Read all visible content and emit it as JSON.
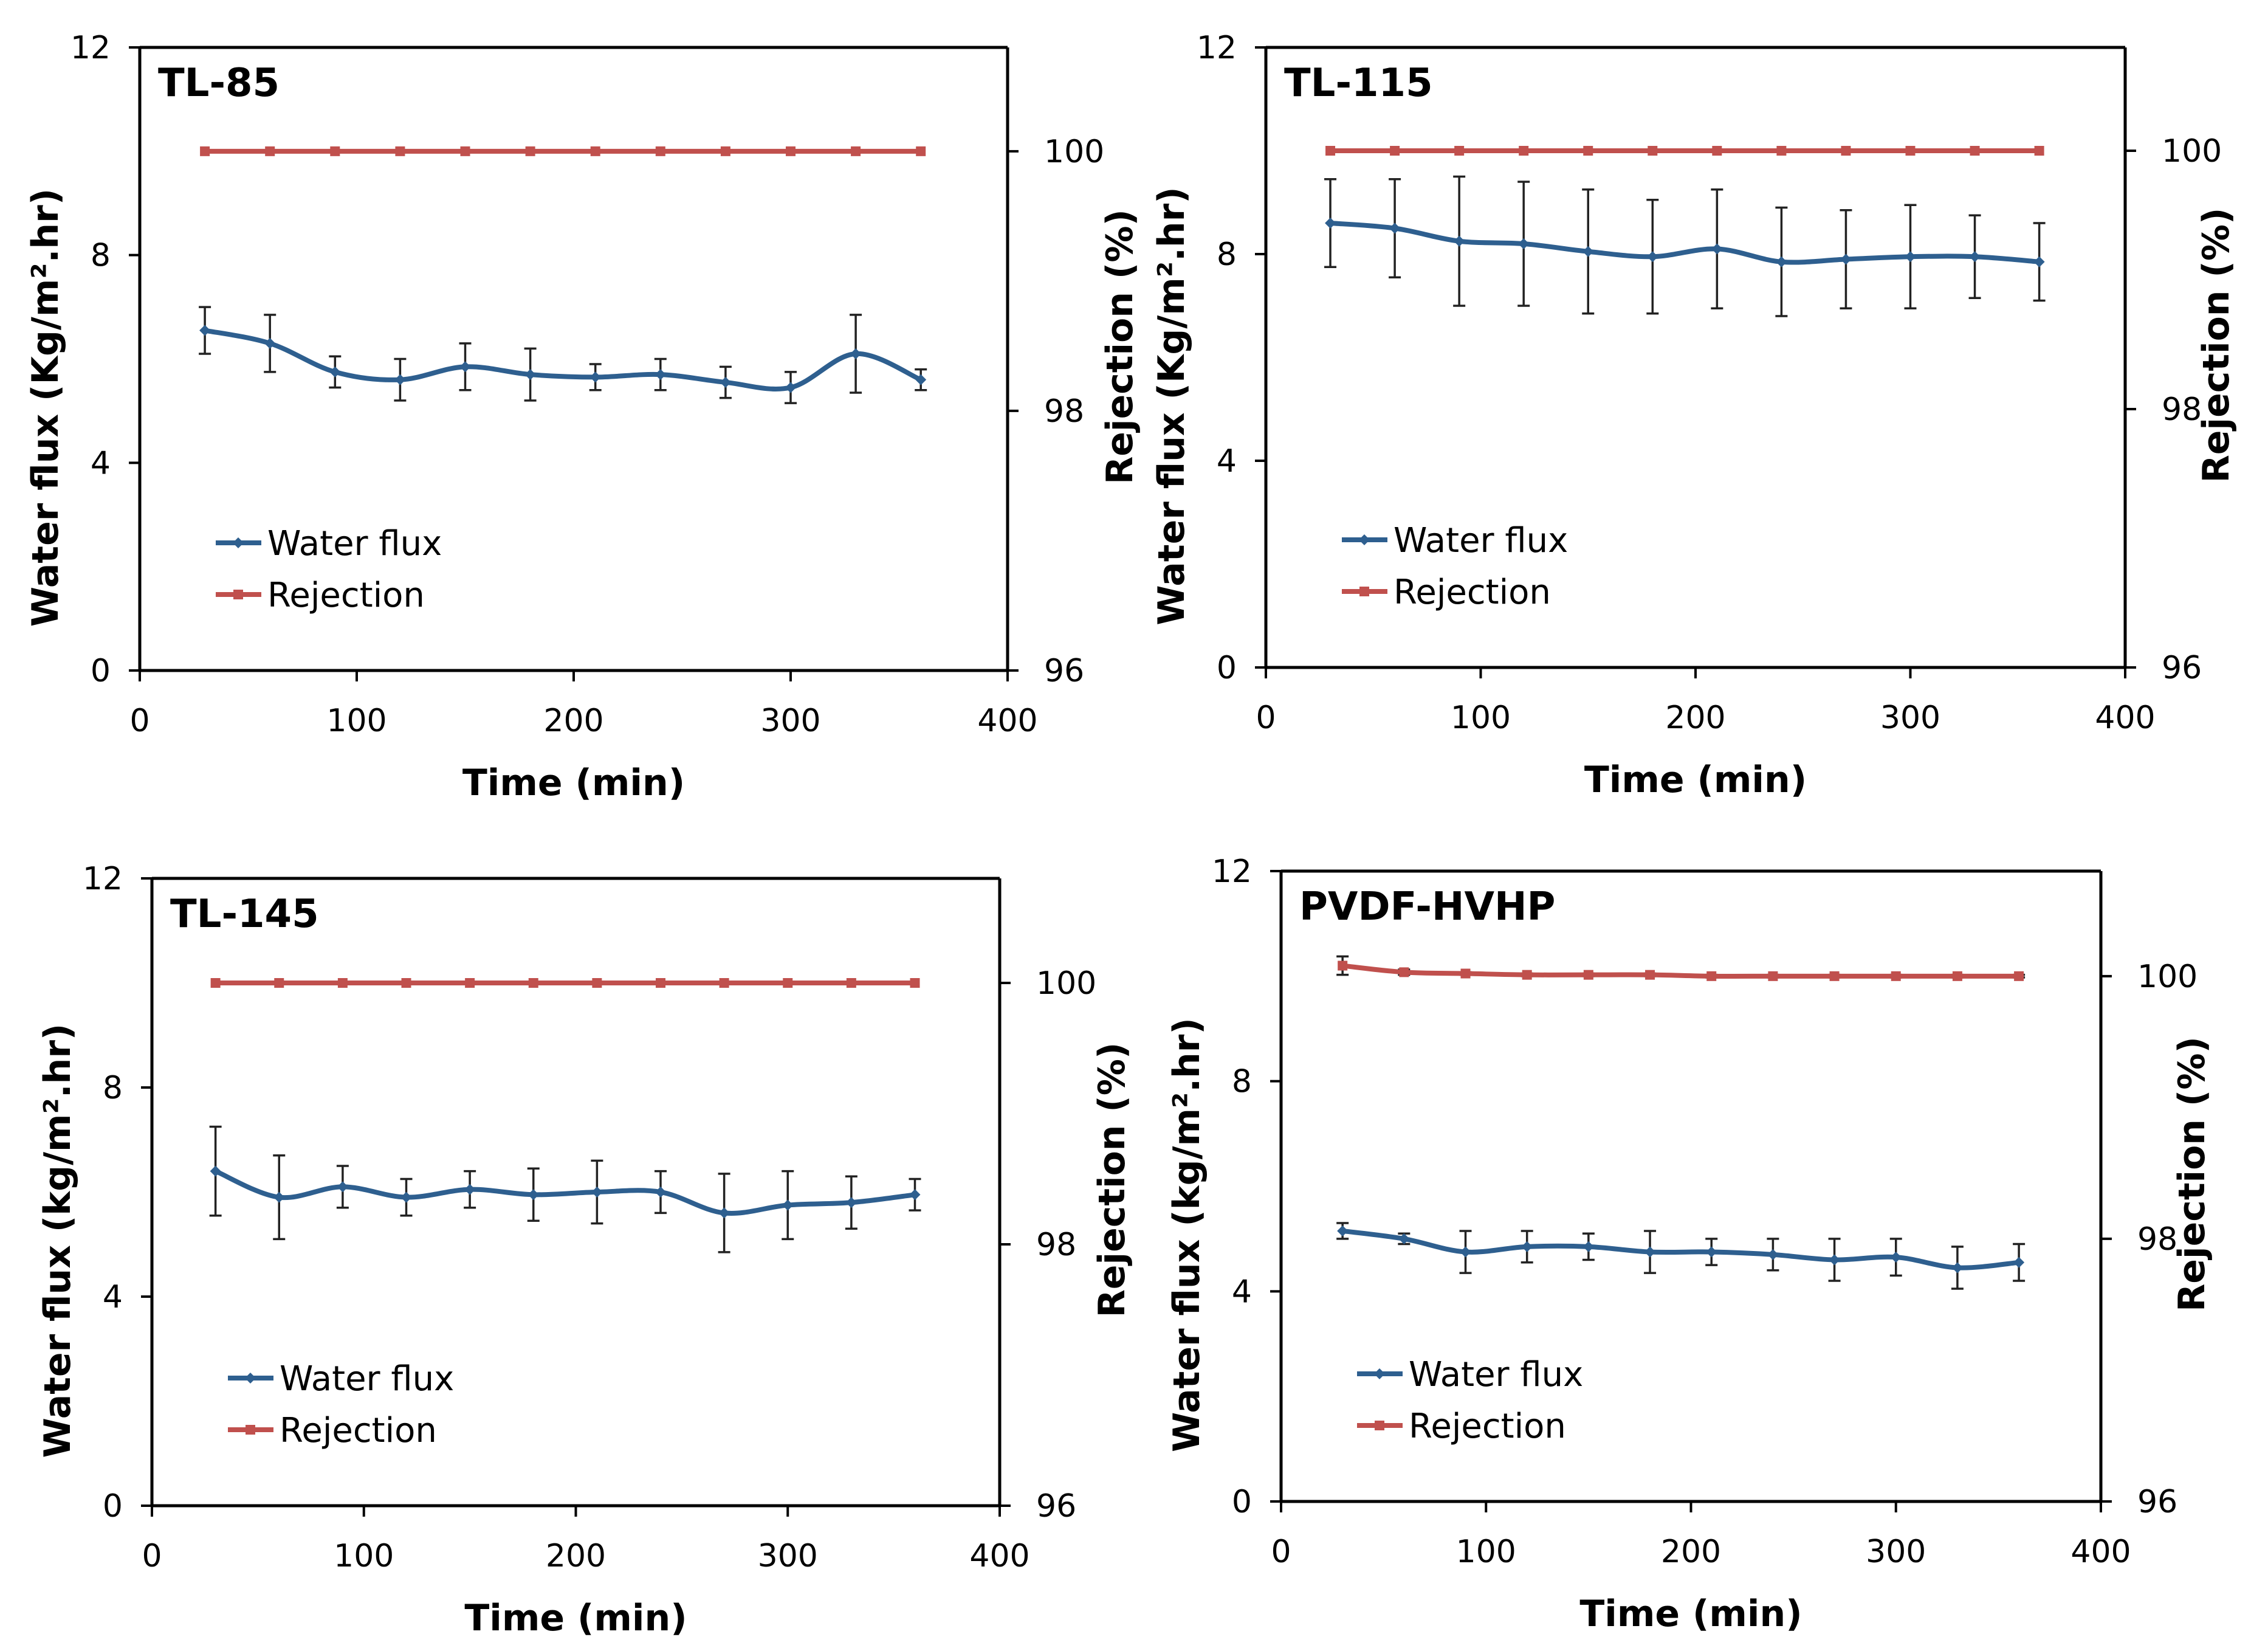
{
  "figure": {
    "colors": {
      "flux": "#2e5f8f",
      "rejection": "#c0504d",
      "axis": "#000000"
    }
  },
  "chart_data": [
    {
      "type": "line",
      "title": "TL-85",
      "xlabel": "Time (min)",
      "ylabel": "Water flux (Kg/m².hr)",
      "y2label": "Rejection (%)",
      "xlim": [
        0,
        400
      ],
      "ylim": [
        0,
        12
      ],
      "y2lim": [
        96,
        100.8
      ],
      "xticks": [
        "0",
        "100",
        "200",
        "300",
        "400"
      ],
      "yticks": [
        "0",
        "4",
        "8",
        "12"
      ],
      "y2ticks": [
        "96",
        "98",
        "100"
      ],
      "legend": [
        "Water flux",
        "Rejection"
      ],
      "legend_position": "lower-left",
      "x": [
        30,
        60,
        90,
        120,
        150,
        180,
        210,
        240,
        270,
        300,
        330,
        360
      ],
      "series": [
        {
          "name": "Water flux",
          "axis": "left",
          "values": [
            6.55,
            6.3,
            5.75,
            5.6,
            5.85,
            5.7,
            5.65,
            5.7,
            5.55,
            5.45,
            6.1,
            5.6
          ],
          "errors": [
            0.45,
            0.55,
            0.3,
            0.4,
            0.45,
            0.5,
            0.25,
            0.3,
            0.3,
            0.3,
            0.75,
            0.2
          ]
        },
        {
          "name": "Rejection",
          "axis": "right",
          "values": [
            100,
            100,
            100,
            100,
            100,
            100,
            100,
            100,
            100,
            100,
            100,
            100
          ]
        }
      ]
    },
    {
      "type": "line",
      "title": "TL-115",
      "xlabel": "Time (min)",
      "ylabel": "Water flux (Kg/m².hr)",
      "y2label": "Rejection (%)",
      "xlim": [
        0,
        400
      ],
      "ylim": [
        0,
        12
      ],
      "y2lim": [
        96,
        100.8
      ],
      "xticks": [
        "0",
        "100",
        "200",
        "300",
        "400"
      ],
      "yticks": [
        "0",
        "4",
        "8",
        "12"
      ],
      "y2ticks": [
        "96",
        "98",
        "100"
      ],
      "legend": [
        "Water flux",
        "Rejection"
      ],
      "legend_position": "lower-left",
      "x": [
        30,
        60,
        90,
        120,
        150,
        180,
        210,
        240,
        270,
        300,
        330,
        360
      ],
      "series": [
        {
          "name": "Water flux",
          "axis": "left",
          "values": [
            8.6,
            8.5,
            8.25,
            8.2,
            8.05,
            7.95,
            8.1,
            7.85,
            7.9,
            7.95,
            7.95,
            7.85
          ],
          "errors": [
            0.85,
            0.95,
            1.25,
            1.2,
            1.2,
            1.1,
            1.15,
            1.05,
            0.95,
            1.0,
            0.8,
            0.75
          ]
        },
        {
          "name": "Rejection",
          "axis": "right",
          "values": [
            100,
            100,
            100,
            100,
            100,
            100,
            100,
            100,
            100,
            100,
            100,
            100
          ]
        }
      ]
    },
    {
      "type": "line",
      "title": "TL-145",
      "xlabel": "Time (min)",
      "ylabel": "Water flux (kg/m².hr)",
      "y2label": "Rejection (%)",
      "xlim": [
        0,
        400
      ],
      "ylim": [
        0,
        12
      ],
      "y2lim": [
        96,
        100.8
      ],
      "xticks": [
        "0",
        "100",
        "200",
        "300",
        "400"
      ],
      "yticks": [
        "0",
        "4",
        "8",
        "12"
      ],
      "y2ticks": [
        "96",
        "98",
        "100"
      ],
      "legend": [
        "Water flux",
        "Rejection"
      ],
      "legend_position": "lower-left",
      "x": [
        30,
        60,
        90,
        120,
        150,
        180,
        210,
        240,
        270,
        300,
        330,
        360
      ],
      "series": [
        {
          "name": "Water flux",
          "axis": "left",
          "values": [
            6.4,
            5.9,
            6.1,
            5.9,
            6.05,
            5.95,
            6.0,
            6.0,
            5.6,
            5.75,
            5.8,
            5.95
          ],
          "errors": [
            0.85,
            0.8,
            0.4,
            0.35,
            0.35,
            0.5,
            0.6,
            0.4,
            0.75,
            0.65,
            0.5,
            0.3
          ]
        },
        {
          "name": "Rejection",
          "axis": "right",
          "values": [
            100,
            100,
            100,
            100,
            100,
            100,
            100,
            100,
            100,
            100,
            100,
            100
          ]
        }
      ]
    },
    {
      "type": "line",
      "title": "PVDF-HVHP",
      "xlabel": "Time (min)",
      "ylabel": "Water flux (kg/m².hr)",
      "y2label": "Rejection (%)",
      "xlim": [
        0,
        400
      ],
      "ylim": [
        0,
        12
      ],
      "y2lim": [
        96,
        100.8
      ],
      "xticks": [
        "0",
        "100",
        "200",
        "300",
        "400"
      ],
      "yticks": [
        "0",
        "4",
        "8",
        "12"
      ],
      "y2ticks": [
        "96",
        "98",
        "100"
      ],
      "legend": [
        "Water flux",
        "Rejection"
      ],
      "legend_position": "lower-left",
      "x": [
        30,
        60,
        90,
        120,
        150,
        180,
        210,
        240,
        270,
        300,
        330,
        360
      ],
      "series": [
        {
          "name": "Water flux",
          "axis": "left",
          "values": [
            5.15,
            5.0,
            4.75,
            4.85,
            4.85,
            4.75,
            4.75,
            4.7,
            4.6,
            4.65,
            4.45,
            4.55
          ],
          "errors": [
            0.15,
            0.1,
            0.4,
            0.3,
            0.25,
            0.4,
            0.25,
            0.3,
            0.4,
            0.35,
            0.4,
            0.35
          ]
        },
        {
          "name": "Rejection",
          "axis": "right",
          "values": [
            100.08,
            100.03,
            100.02,
            100.01,
            100.01,
            100.01,
            100.0,
            100.0,
            100.0,
            100.0,
            100.0,
            100.0
          ],
          "errors": [
            0.07,
            0.02,
            0.01,
            0.01,
            0.01,
            0.01,
            0.01,
            0.01,
            0.01,
            0.01,
            0.01,
            0.01
          ]
        }
      ]
    }
  ]
}
